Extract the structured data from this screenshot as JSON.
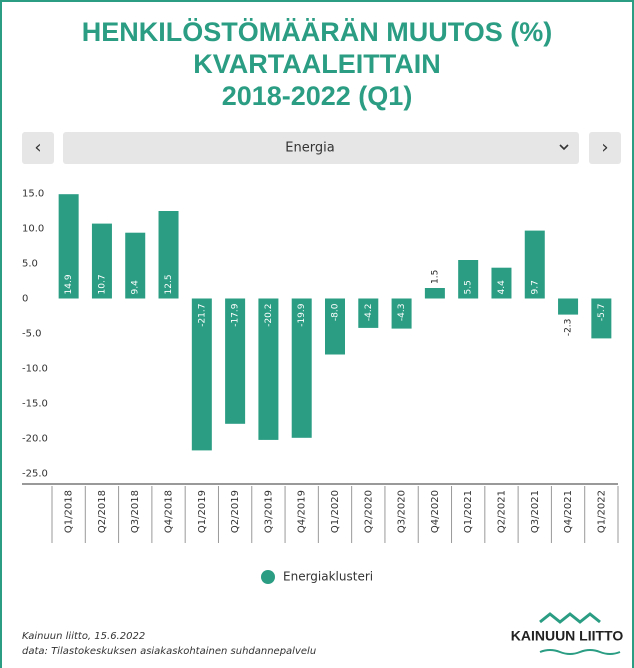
{
  "header": {
    "title_lines": [
      "HENKILÖSTÖMÄÄRÄN MUUTOS (%)",
      "KVARTAALEITTAIN",
      "2018-2022 (Q1)"
    ]
  },
  "controls": {
    "prev": "‹",
    "dropdown": "Energia",
    "next": "›"
  },
  "chart_data": {
    "type": "bar",
    "categories": [
      "Q1/2018",
      "Q2/2018",
      "Q3/2018",
      "Q4/2018",
      "Q1/2019",
      "Q2/2019",
      "Q3/2019",
      "Q4/2019",
      "Q1/2020",
      "Q2/2020",
      "Q3/2020",
      "Q4/2020",
      "Q1/2021",
      "Q2/2021",
      "Q3/2021",
      "Q4/2021",
      "Q1/2022"
    ],
    "series": [
      {
        "name": "Energiaklusteri",
        "color": "#2a9d83",
        "values": [
          14.9,
          10.7,
          9.4,
          12.5,
          -21.7,
          -17.9,
          -20.2,
          -19.9,
          -8.0,
          -4.2,
          -4.3,
          1.5,
          5.5,
          4.4,
          9.7,
          -2.3,
          -5.7
        ],
        "value_labels": [
          "14.9",
          "10.7",
          "9.4",
          "12.5",
          "-21.7",
          "-17.9",
          "-20.2",
          "-19.9",
          "-8.0",
          "-4.2",
          "-4.3",
          "1.5",
          "5.5",
          "4.4",
          "9.7",
          "-2.3",
          "-5.7"
        ]
      }
    ],
    "ylim": [
      -26.5,
      16.5
    ],
    "yticks": [
      {
        "value": 15,
        "label": "15.0"
      },
      {
        "value": 10,
        "label": "10.0"
      },
      {
        "value": 5,
        "label": "5.0"
      },
      0,
      {
        "value": -5,
        "label": "-5.0"
      },
      {
        "value": -10,
        "label": "-10.0"
      },
      {
        "value": -15,
        "label": "-15.0"
      },
      {
        "value": -20,
        "label": "-20.0"
      },
      {
        "value": -25,
        "label": "-25.0"
      }
    ],
    "grid": false
  },
  "footer": {
    "source": "Kainuun liitto, 15.6.2022",
    "data_note": "data: Tilastokeskuksen asiakaskohtainen suhdannepalvelu",
    "logo": "KAINUUN LIITTO"
  }
}
